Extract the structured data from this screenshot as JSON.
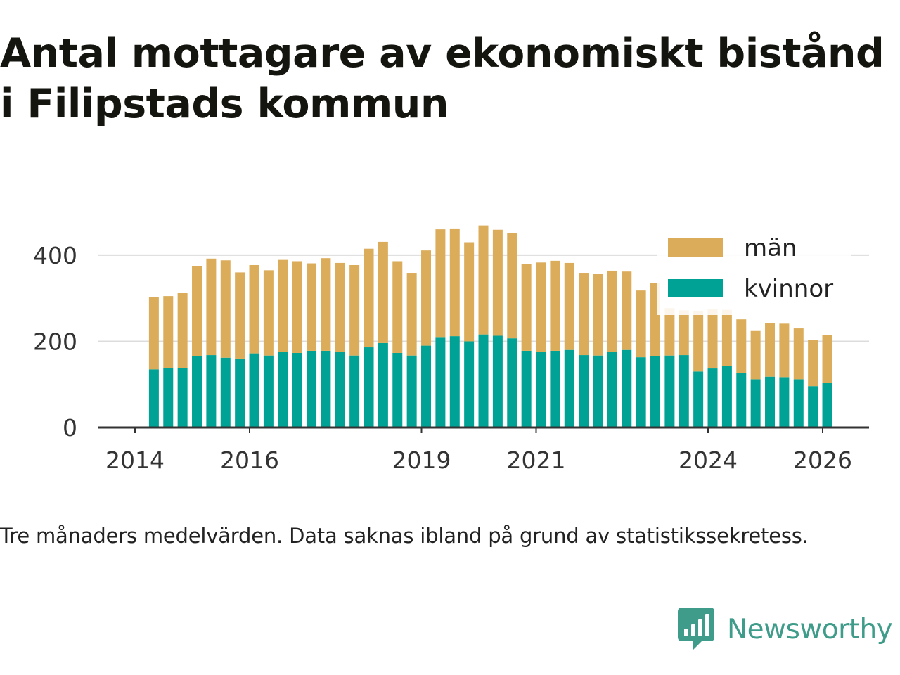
{
  "title_lines": [
    "Antal mottagare av ekonomiskt bistånd",
    "i Filipstads kommun"
  ],
  "note": "Tre månaders medelvärden. Data saknas ibland på grund av statistikssekretess.",
  "brand": {
    "name": "Newsworthy",
    "color": "#3f9c8a"
  },
  "chart_data": {
    "type": "bar",
    "stacked": true,
    "x_axis": {
      "start": 2014.0,
      "end": 2026.5,
      "ticks": [
        2014,
        2016,
        2019,
        2021,
        2024,
        2026
      ],
      "tick_labels": [
        "2014",
        "2016",
        "2019",
        "2021",
        "2024",
        "2026"
      ]
    },
    "y_axis": {
      "min": 0,
      "max": 470,
      "ticks": [
        0,
        200,
        400
      ],
      "tick_labels": [
        "0",
        "200",
        "400"
      ],
      "grid": true
    },
    "legend": {
      "placement": "top-right",
      "entries": [
        "män",
        "kvinnor"
      ]
    },
    "x": [
      2014.33,
      2014.58,
      2014.83,
      2015.08,
      2015.33,
      2015.58,
      2015.83,
      2016.08,
      2016.33,
      2016.58,
      2016.83,
      2017.08,
      2017.33,
      2017.58,
      2017.83,
      2018.08,
      2018.33,
      2018.58,
      2018.83,
      2019.08,
      2019.33,
      2019.58,
      2019.83,
      2020.08,
      2020.33,
      2020.58,
      2020.83,
      2021.08,
      2021.33,
      2021.58,
      2021.83,
      2022.08,
      2022.33,
      2022.58,
      2022.83,
      2023.08,
      2023.33,
      2023.58,
      2023.83,
      2024.08,
      2024.33,
      2024.58,
      2024.83,
      2025.08,
      2025.33,
      2025.58,
      2025.83,
      2026.08
    ],
    "series": [
      {
        "name": "kvinnor",
        "color": "#00a295",
        "values": [
          135,
          138,
          138,
          165,
          168,
          162,
          160,
          172,
          167,
          175,
          173,
          178,
          178,
          175,
          167,
          186,
          196,
          173,
          167,
          190,
          210,
          212,
          200,
          216,
          213,
          207,
          178,
          176,
          178,
          180,
          168,
          167,
          176,
          180,
          163,
          165,
          167,
          168,
          130,
          137,
          143,
          127,
          112,
          118,
          117,
          112,
          96,
          103
        ]
      },
      {
        "name": "män",
        "color": "#dbad5b",
        "values": [
          168,
          167,
          174,
          210,
          224,
          226,
          200,
          205,
          198,
          214,
          213,
          203,
          215,
          207,
          210,
          229,
          235,
          213,
          192,
          221,
          250,
          250,
          230,
          253,
          246,
          244,
          202,
          207,
          209,
          202,
          191,
          189,
          188,
          182,
          155,
          170,
          110,
          104,
          140,
          137,
          130,
          124,
          112,
          125,
          124,
          118,
          107,
          112
        ]
      }
    ]
  }
}
